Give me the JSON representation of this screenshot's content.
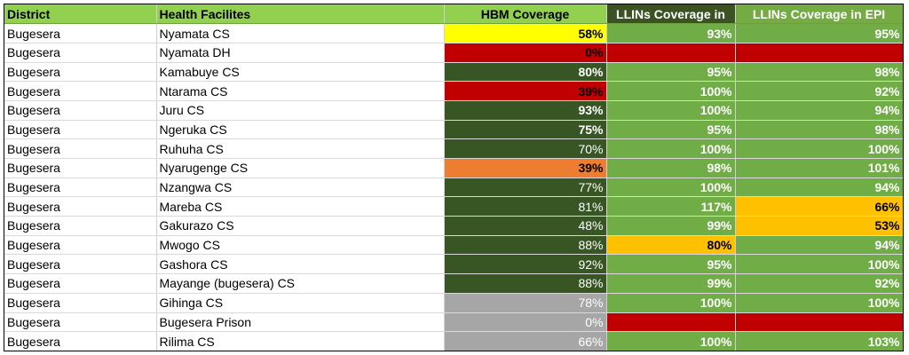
{
  "headers": {
    "district": "District",
    "facility": "Health Facilites",
    "hbm": "HBM Coverage",
    "llins": "LLINs Coverage in",
    "llins_epi": "LLINs Coverage in EPI"
  },
  "colors": {
    "header_green": "#92d050",
    "dark_green": "#375623",
    "mid_green": "#70ad47",
    "red": "#c00000",
    "yellow": "#ffff00",
    "orange": "#ed7d31",
    "amber": "#ffc000",
    "gray": "#a6a6a6",
    "white": "#ffffff"
  },
  "rows": [
    {
      "district": "Bugesera",
      "facility": "Nyamata CS",
      "hbm": "58%",
      "hbm_bg": "#ffff00",
      "hbm_fg": "#000000",
      "hbm_w": "bold",
      "llins": "93%",
      "llins_bg": "#70ad47",
      "llins_fg": "#ffffff",
      "epi": "95%",
      "epi_bg": "#70ad47",
      "epi_fg": "#ffffff"
    },
    {
      "district": "Bugesera",
      "facility": "Nyamata DH",
      "hbm": "0%",
      "hbm_bg": "#c00000",
      "hbm_fg": "#000000",
      "hbm_w": "bold",
      "llins": "",
      "llins_bg": "#c00000",
      "llins_fg": "#ffffff",
      "epi": "",
      "epi_bg": "#c00000",
      "epi_fg": "#ffffff"
    },
    {
      "district": "Bugesera",
      "facility": "Kamabuye CS",
      "hbm": "80%",
      "hbm_bg": "#375623",
      "hbm_fg": "#ffffff",
      "hbm_w": "bold",
      "llins": "95%",
      "llins_bg": "#70ad47",
      "llins_fg": "#ffffff",
      "epi": "98%",
      "epi_bg": "#70ad47",
      "epi_fg": "#ffffff"
    },
    {
      "district": "Bugesera",
      "facility": "Ntarama CS",
      "hbm": "39%",
      "hbm_bg": "#c00000",
      "hbm_fg": "#000000",
      "hbm_w": "bold",
      "llins": "100%",
      "llins_bg": "#70ad47",
      "llins_fg": "#ffffff",
      "epi": "92%",
      "epi_bg": "#70ad47",
      "epi_fg": "#ffffff"
    },
    {
      "district": "Bugesera",
      "facility": "Juru CS",
      "hbm": "93%",
      "hbm_bg": "#375623",
      "hbm_fg": "#ffffff",
      "hbm_w": "bold",
      "llins": "100%",
      "llins_bg": "#70ad47",
      "llins_fg": "#ffffff",
      "epi": "94%",
      "epi_bg": "#70ad47",
      "epi_fg": "#ffffff"
    },
    {
      "district": "Bugesera",
      "facility": "Ngeruka CS",
      "hbm": "75%",
      "hbm_bg": "#375623",
      "hbm_fg": "#ffffff",
      "hbm_w": "bold",
      "llins": "95%",
      "llins_bg": "#70ad47",
      "llins_fg": "#ffffff",
      "epi": "98%",
      "epi_bg": "#70ad47",
      "epi_fg": "#ffffff"
    },
    {
      "district": "Bugesera",
      "facility": "Ruhuha CS",
      "hbm": "70%",
      "hbm_bg": "#375623",
      "hbm_fg": "#ffffff",
      "hbm_w": "normal",
      "llins": "100%",
      "llins_bg": "#70ad47",
      "llins_fg": "#ffffff",
      "epi": "100%",
      "epi_bg": "#70ad47",
      "epi_fg": "#ffffff"
    },
    {
      "district": "Bugesera",
      "facility": "Nyarugenge CS",
      "hbm": "39%",
      "hbm_bg": "#ed7d31",
      "hbm_fg": "#000000",
      "hbm_w": "bold",
      "llins": "98%",
      "llins_bg": "#70ad47",
      "llins_fg": "#ffffff",
      "epi": "101%",
      "epi_bg": "#70ad47",
      "epi_fg": "#ffffff"
    },
    {
      "district": "Bugesera",
      "facility": "Nzangwa CS",
      "hbm": "77%",
      "hbm_bg": "#375623",
      "hbm_fg": "#ffffff",
      "hbm_w": "normal",
      "llins": "100%",
      "llins_bg": "#70ad47",
      "llins_fg": "#ffffff",
      "epi": "94%",
      "epi_bg": "#70ad47",
      "epi_fg": "#ffffff"
    },
    {
      "district": "Bugesera",
      "facility": "Mareba CS",
      "hbm": "81%",
      "hbm_bg": "#375623",
      "hbm_fg": "#ffffff",
      "hbm_w": "normal",
      "llins": "117%",
      "llins_bg": "#70ad47",
      "llins_fg": "#ffffff",
      "epi": "66%",
      "epi_bg": "#ffc000",
      "epi_fg": "#000000"
    },
    {
      "district": "Bugesera",
      "facility": "Gakurazo CS",
      "hbm": "48%",
      "hbm_bg": "#375623",
      "hbm_fg": "#ffffff",
      "hbm_w": "normal",
      "llins": "99%",
      "llins_bg": "#70ad47",
      "llins_fg": "#ffffff",
      "epi": "53%",
      "epi_bg": "#ffc000",
      "epi_fg": "#000000"
    },
    {
      "district": "Bugesera",
      "facility": "Mwogo CS",
      "hbm": "88%",
      "hbm_bg": "#375623",
      "hbm_fg": "#ffffff",
      "hbm_w": "normal",
      "llins": "80%",
      "llins_bg": "#ffc000",
      "llins_fg": "#000000",
      "epi": "94%",
      "epi_bg": "#70ad47",
      "epi_fg": "#ffffff"
    },
    {
      "district": "Bugesera",
      "facility": "Gashora CS",
      "hbm": "92%",
      "hbm_bg": "#375623",
      "hbm_fg": "#ffffff",
      "hbm_w": "normal",
      "llins": "95%",
      "llins_bg": "#70ad47",
      "llins_fg": "#ffffff",
      "epi": "100%",
      "epi_bg": "#70ad47",
      "epi_fg": "#ffffff"
    },
    {
      "district": "Bugesera",
      "facility": "Mayange (bugesera) CS",
      "hbm": "88%",
      "hbm_bg": "#375623",
      "hbm_fg": "#ffffff",
      "hbm_w": "normal",
      "llins": "99%",
      "llins_bg": "#70ad47",
      "llins_fg": "#ffffff",
      "epi": "92%",
      "epi_bg": "#70ad47",
      "epi_fg": "#ffffff"
    },
    {
      "district": "Bugesera",
      "facility": "Gihinga CS",
      "hbm": "78%",
      "hbm_bg": "#a6a6a6",
      "hbm_fg": "#ffffff",
      "hbm_w": "normal",
      "llins": "100%",
      "llins_bg": "#70ad47",
      "llins_fg": "#ffffff",
      "epi": "100%",
      "epi_bg": "#70ad47",
      "epi_fg": "#ffffff"
    },
    {
      "district": "Bugesera",
      "facility": "Bugesera Prison",
      "hbm": "0%",
      "hbm_bg": "#a6a6a6",
      "hbm_fg": "#ffffff",
      "hbm_w": "normal",
      "llins": "",
      "llins_bg": "#c00000",
      "llins_fg": "#ffffff",
      "epi": "",
      "epi_bg": "#c00000",
      "epi_fg": "#ffffff"
    },
    {
      "district": "Bugesera",
      "facility": "Rilima CS",
      "hbm": "66%",
      "hbm_bg": "#a6a6a6",
      "hbm_fg": "#ffffff",
      "hbm_w": "normal",
      "llins": "100%",
      "llins_bg": "#70ad47",
      "llins_fg": "#ffffff",
      "epi": "103%",
      "epi_bg": "#70ad47",
      "epi_fg": "#ffffff"
    }
  ]
}
